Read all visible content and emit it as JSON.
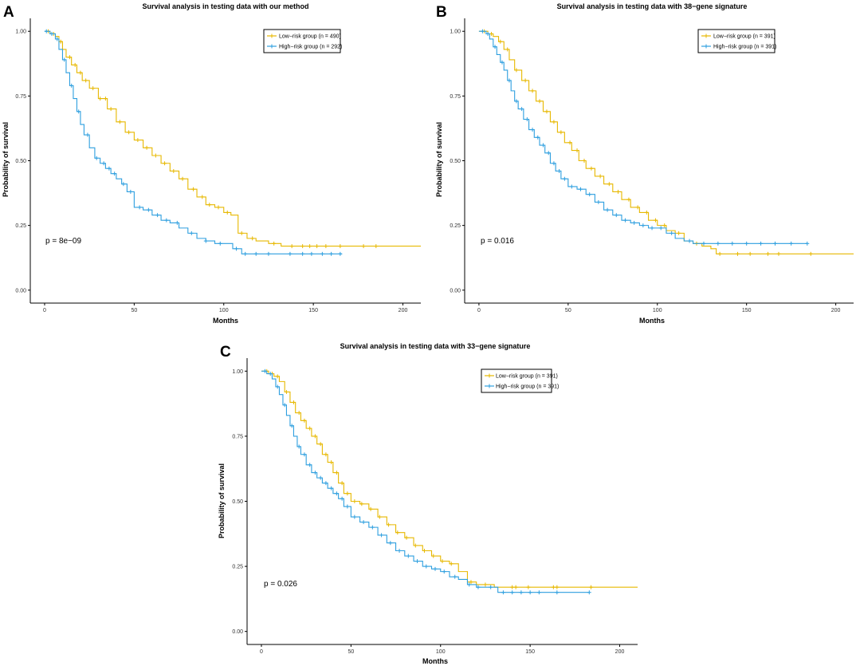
{
  "colors": {
    "low": "#E7B800",
    "high": "#2E9FDF",
    "axis": "#000000"
  },
  "chart_data": [
    {
      "type": "line",
      "panel": "A",
      "title": "Survival analysis in testing data with our method",
      "xlabel": "Months",
      "ylabel": "Probability of survival",
      "xlim": [
        -8,
        210
      ],
      "ylim": [
        -0.05,
        1.05
      ],
      "xticks": [
        0,
        50,
        100,
        150,
        200
      ],
      "xtick_labels": [
        "0",
        "50",
        "100",
        "150",
        "200"
      ],
      "yticks": [
        0,
        0.25,
        0.5,
        0.75,
        1.0
      ],
      "ytick_labels": [
        "0.00",
        "0.25",
        "0.50",
        "0.75",
        "1.00"
      ],
      "pvalue": "p = 8e−09",
      "legend_position": "top-right",
      "legend": [
        "Low−risk group (n = 490)",
        "High−risk group (n = 292)"
      ],
      "series": [
        {
          "name": "Low−risk group (n = 490)",
          "color_key": "low",
          "x": [
            0,
            3,
            6,
            8,
            10,
            12,
            15,
            18,
            21,
            25,
            30,
            35,
            40,
            45,
            50,
            55,
            60,
            65,
            70,
            75,
            80,
            85,
            90,
            95,
            100,
            104,
            108,
            113,
            118,
            125,
            132,
            140,
            150,
            160,
            170,
            185,
            210
          ],
          "y": [
            1.0,
            0.99,
            0.98,
            0.96,
            0.93,
            0.9,
            0.87,
            0.84,
            0.81,
            0.78,
            0.74,
            0.7,
            0.65,
            0.61,
            0.58,
            0.55,
            0.52,
            0.49,
            0.46,
            0.43,
            0.39,
            0.36,
            0.33,
            0.32,
            0.3,
            0.29,
            0.22,
            0.2,
            0.19,
            0.18,
            0.17,
            0.17,
            0.17,
            0.17,
            0.17,
            0.17,
            0.17
          ],
          "censor_x": [
            2,
            5,
            9,
            14,
            17,
            20,
            23,
            27,
            31,
            34,
            37,
            42,
            47,
            52,
            57,
            62,
            67,
            72,
            77,
            83,
            88,
            92,
            97,
            102,
            110,
            116,
            128,
            138,
            144,
            148,
            152,
            157,
            165,
            178,
            185
          ]
        },
        {
          "name": "High−risk group (n = 292)",
          "color_key": "high",
          "x": [
            0,
            3,
            6,
            8,
            10,
            12,
            14,
            16,
            18,
            20,
            22,
            25,
            28,
            31,
            34,
            37,
            40,
            43,
            46,
            50,
            55,
            60,
            65,
            70,
            75,
            80,
            85,
            90,
            95,
            100,
            105,
            110,
            115,
            120,
            130,
            140,
            150,
            160,
            166
          ],
          "y": [
            1.0,
            0.99,
            0.97,
            0.93,
            0.89,
            0.84,
            0.79,
            0.74,
            0.69,
            0.64,
            0.6,
            0.55,
            0.51,
            0.49,
            0.47,
            0.45,
            0.43,
            0.41,
            0.38,
            0.32,
            0.31,
            0.29,
            0.27,
            0.26,
            0.24,
            0.22,
            0.2,
            0.19,
            0.18,
            0.18,
            0.16,
            0.14,
            0.14,
            0.14,
            0.14,
            0.14,
            0.14,
            0.14,
            0.14
          ],
          "censor_x": [
            1,
            4,
            7,
            11,
            15,
            19,
            24,
            29,
            33,
            36,
            39,
            44,
            48,
            53,
            58,
            63,
            68,
            74,
            82,
            90,
            98,
            107,
            112,
            118,
            125,
            137,
            144,
            149,
            155,
            160,
            165
          ]
        }
      ]
    },
    {
      "type": "line",
      "panel": "B",
      "title": "Survival analysis in testing data with 38−gene signature",
      "xlabel": "Months",
      "ylabel": "Probability of survival",
      "xlim": [
        -8,
        210
      ],
      "ylim": [
        -0.05,
        1.05
      ],
      "xticks": [
        0,
        50,
        100,
        150,
        200
      ],
      "xtick_labels": [
        "0",
        "50",
        "100",
        "150",
        "200"
      ],
      "yticks": [
        0,
        0.25,
        0.5,
        0.75,
        1.0
      ],
      "ytick_labels": [
        "0.00",
        "0.25",
        "0.50",
        "0.75",
        "1.00"
      ],
      "pvalue": "p = 0.016",
      "legend_position": "top-right",
      "legend": [
        "Low−risk group (n = 391)",
        "High−risk group (n = 391)"
      ],
      "series": [
        {
          "name": "Low−risk group (n = 391)",
          "color_key": "low",
          "x": [
            0,
            5,
            8,
            11,
            14,
            17,
            20,
            24,
            28,
            32,
            36,
            40,
            44,
            48,
            52,
            56,
            60,
            65,
            70,
            75,
            80,
            85,
            90,
            95,
            100,
            105,
            110,
            115,
            120,
            125,
            130,
            133,
            140,
            150,
            165,
            185,
            210
          ],
          "y": [
            1.0,
            0.99,
            0.98,
            0.96,
            0.93,
            0.89,
            0.85,
            0.81,
            0.77,
            0.73,
            0.69,
            0.65,
            0.61,
            0.57,
            0.54,
            0.5,
            0.47,
            0.44,
            0.41,
            0.38,
            0.35,
            0.32,
            0.3,
            0.27,
            0.25,
            0.23,
            0.22,
            0.19,
            0.18,
            0.17,
            0.16,
            0.14,
            0.14,
            0.14,
            0.14,
            0.14,
            0.14
          ],
          "censor_x": [
            3,
            7,
            12,
            16,
            21,
            26,
            30,
            34,
            38,
            42,
            46,
            51,
            55,
            59,
            63,
            68,
            73,
            78,
            84,
            89,
            94,
            99,
            104,
            112,
            122,
            135,
            145,
            152,
            162,
            168,
            186
          ]
        },
        {
          "name": "High−risk group (n = 391)",
          "color_key": "high",
          "x": [
            0,
            4,
            6,
            8,
            10,
            12,
            14,
            16,
            18,
            20,
            22,
            25,
            28,
            31,
            34,
            37,
            40,
            43,
            46,
            50,
            55,
            60,
            65,
            70,
            75,
            80,
            85,
            90,
            95,
            100,
            105,
            110,
            115,
            120,
            130,
            140,
            150,
            160,
            170,
            184
          ],
          "y": [
            1.0,
            0.99,
            0.97,
            0.94,
            0.91,
            0.88,
            0.85,
            0.81,
            0.77,
            0.73,
            0.7,
            0.66,
            0.62,
            0.59,
            0.56,
            0.53,
            0.49,
            0.46,
            0.43,
            0.4,
            0.39,
            0.37,
            0.34,
            0.31,
            0.29,
            0.27,
            0.26,
            0.25,
            0.24,
            0.24,
            0.22,
            0.2,
            0.19,
            0.18,
            0.18,
            0.18,
            0.18,
            0.18,
            0.18,
            0.18
          ],
          "censor_x": [
            2,
            5,
            9,
            13,
            17,
            21,
            24,
            27,
            30,
            33,
            36,
            39,
            42,
            45,
            48,
            52,
            57,
            62,
            67,
            72,
            77,
            82,
            87,
            92,
            97,
            102,
            108,
            118,
            126,
            134,
            142,
            150,
            158,
            166,
            175,
            184
          ]
        }
      ]
    },
    {
      "type": "line",
      "panel": "C",
      "title": "Survival analysis in testing data with 33−gene signature",
      "xlabel": "Months",
      "ylabel": "Probability of survival",
      "xlim": [
        -8,
        210
      ],
      "ylim": [
        -0.05,
        1.05
      ],
      "xticks": [
        0,
        50,
        100,
        150,
        200
      ],
      "xtick_labels": [
        "0",
        "50",
        "100",
        "150",
        "200"
      ],
      "yticks": [
        0,
        0.25,
        0.5,
        0.75,
        1.0
      ],
      "ytick_labels": [
        "0.00",
        "0.25",
        "0.50",
        "0.75",
        "1.00"
      ],
      "pvalue": "p = 0.026",
      "legend_position": "top-right",
      "legend": [
        "Low−risk group (n = 391)",
        "High−risk group (n = 391)"
      ],
      "series": [
        {
          "name": "Low−risk group (n = 391)",
          "color_key": "low",
          "x": [
            0,
            4,
            7,
            10,
            13,
            16,
            19,
            22,
            25,
            28,
            31,
            34,
            37,
            40,
            43,
            46,
            50,
            55,
            60,
            65,
            70,
            75,
            80,
            85,
            90,
            95,
            100,
            105,
            110,
            115,
            120,
            130,
            140,
            150,
            160,
            170,
            185,
            210
          ],
          "y": [
            1.0,
            0.99,
            0.98,
            0.96,
            0.92,
            0.88,
            0.84,
            0.81,
            0.78,
            0.75,
            0.72,
            0.68,
            0.65,
            0.61,
            0.57,
            0.53,
            0.5,
            0.49,
            0.47,
            0.44,
            0.41,
            0.38,
            0.36,
            0.33,
            0.31,
            0.29,
            0.27,
            0.26,
            0.23,
            0.19,
            0.18,
            0.17,
            0.17,
            0.17,
            0.17,
            0.17,
            0.17,
            0.17
          ],
          "censor_x": [
            3,
            6,
            9,
            14,
            18,
            21,
            24,
            27,
            30,
            33,
            36,
            39,
            42,
            45,
            48,
            52,
            56,
            61,
            66,
            71,
            76,
            81,
            86,
            91,
            96,
            101,
            106,
            117,
            125,
            140,
            142,
            149,
            163,
            165,
            184
          ]
        },
        {
          "name": "High−risk group (n = 391)",
          "color_key": "high",
          "x": [
            0,
            3,
            6,
            8,
            10,
            12,
            14,
            16,
            18,
            20,
            22,
            25,
            28,
            31,
            34,
            37,
            40,
            43,
            46,
            50,
            55,
            60,
            65,
            70,
            75,
            80,
            85,
            90,
            95,
            100,
            105,
            110,
            115,
            120,
            125,
            132,
            140,
            150,
            160,
            170,
            183
          ],
          "y": [
            1.0,
            0.99,
            0.97,
            0.94,
            0.91,
            0.87,
            0.83,
            0.79,
            0.75,
            0.71,
            0.68,
            0.64,
            0.61,
            0.59,
            0.57,
            0.55,
            0.53,
            0.51,
            0.48,
            0.44,
            0.42,
            0.4,
            0.37,
            0.34,
            0.31,
            0.29,
            0.27,
            0.25,
            0.24,
            0.23,
            0.21,
            0.2,
            0.18,
            0.17,
            0.17,
            0.15,
            0.15,
            0.15,
            0.15,
            0.15,
            0.15
          ],
          "censor_x": [
            2,
            5,
            9,
            13,
            17,
            21,
            24,
            27,
            30,
            33,
            36,
            39,
            42,
            45,
            48,
            52,
            57,
            62,
            67,
            72,
            77,
            82,
            87,
            92,
            97,
            102,
            108,
            116,
            121,
            128,
            135,
            140,
            145,
            150,
            155,
            165,
            183
          ]
        }
      ]
    }
  ]
}
